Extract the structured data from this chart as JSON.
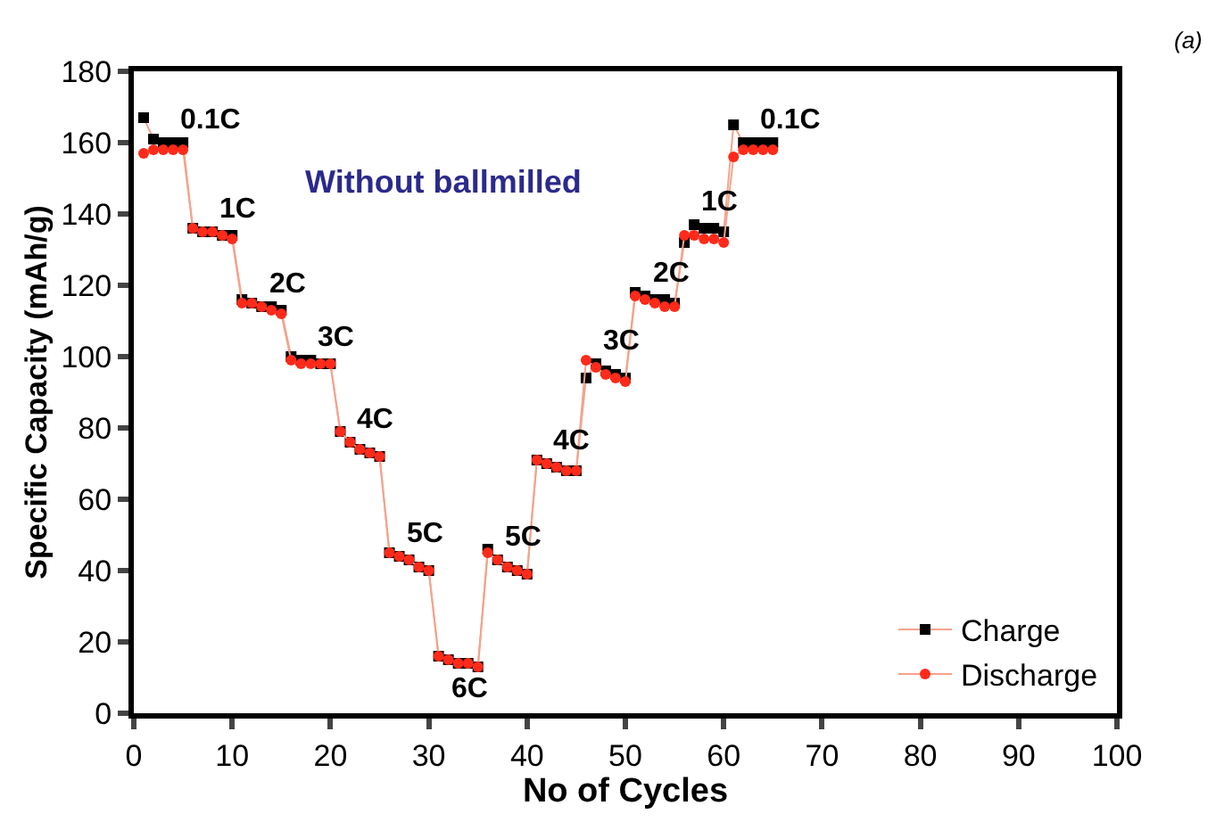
{
  "chart_data": {
    "type": "line",
    "xlabel": "No of Cycles",
    "ylabel": "Specific Capacity (mAh/g)",
    "x": [
      1,
      2,
      3,
      4,
      5,
      6,
      7,
      8,
      9,
      10,
      11,
      12,
      13,
      14,
      15,
      16,
      17,
      18,
      19,
      20,
      21,
      22,
      23,
      24,
      25,
      26,
      27,
      28,
      29,
      30,
      31,
      32,
      33,
      34,
      35,
      36,
      37,
      38,
      39,
      40,
      41,
      42,
      43,
      44,
      45,
      46,
      47,
      48,
      49,
      50,
      51,
      52,
      53,
      54,
      55,
      56,
      57,
      58,
      59,
      60,
      61,
      62,
      63,
      64,
      65
    ],
    "series": [
      {
        "name": "Charge",
        "color": "#000000",
        "marker": "square",
        "values": [
          167,
          161,
          160,
          160,
          160,
          136,
          135,
          135,
          134,
          134,
          116,
          115,
          114,
          114,
          113,
          100,
          99,
          99,
          98,
          98,
          79,
          76,
          74,
          73,
          72,
          45,
          44,
          43,
          41,
          40,
          16,
          15,
          14,
          14,
          13,
          46,
          43,
          41,
          40,
          39,
          71,
          70,
          69,
          68,
          68,
          94,
          98,
          96,
          95,
          94,
          118,
          117,
          116,
          116,
          115,
          132,
          137,
          136,
          136,
          135,
          165,
          160,
          160,
          160,
          160
        ]
      },
      {
        "name": "Discharge",
        "color": "#ff2a1a",
        "marker": "circle",
        "values": [
          157,
          158,
          158,
          158,
          158,
          136,
          135,
          135,
          134,
          133,
          115,
          115,
          114,
          113,
          112,
          99,
          98,
          98,
          98,
          98,
          79,
          76,
          74,
          73,
          72,
          45,
          44,
          43,
          41,
          40,
          16,
          15,
          14,
          14,
          13,
          45,
          43,
          41,
          40,
          39,
          71,
          70,
          69,
          68,
          68,
          99,
          97,
          95,
          94,
          93,
          117,
          116,
          115,
          114,
          114,
          134,
          134,
          133,
          133,
          132,
          156,
          158,
          158,
          158,
          158
        ]
      }
    ],
    "xlim": [
      0,
      100
    ],
    "xticks": [
      0,
      10,
      20,
      30,
      40,
      50,
      60,
      70,
      80,
      90,
      100
    ],
    "ylim": [
      0,
      180
    ],
    "yticks": [
      0,
      20,
      40,
      60,
      80,
      100,
      120,
      140,
      160,
      180
    ],
    "legend": "bottom right",
    "line_style": "solid",
    "annotations": [
      {
        "text": "0.1C",
        "x": 4,
        "y": 160
      },
      {
        "text": "1C",
        "x": 8,
        "y": 135
      },
      {
        "text": "2C",
        "x": 13,
        "y": 114
      },
      {
        "text": "3C",
        "x": 18,
        "y": 99
      },
      {
        "text": "4C",
        "x": 22,
        "y": 76
      },
      {
        "text": "5C",
        "x": 27,
        "y": 44
      },
      {
        "text": "6C",
        "x": 33,
        "y": 14
      },
      {
        "text": "5C",
        "x": 37,
        "y": 43
      },
      {
        "text": "4C",
        "x": 42,
        "y": 70
      },
      {
        "text": "3C",
        "x": 47,
        "y": 98
      },
      {
        "text": "2C",
        "x": 52,
        "y": 117
      },
      {
        "text": "1C",
        "x": 57,
        "y": 137
      },
      {
        "text": "0.1C",
        "x": 63,
        "y": 160
      },
      "Without ballmilled",
      "(a)"
    ]
  }
}
